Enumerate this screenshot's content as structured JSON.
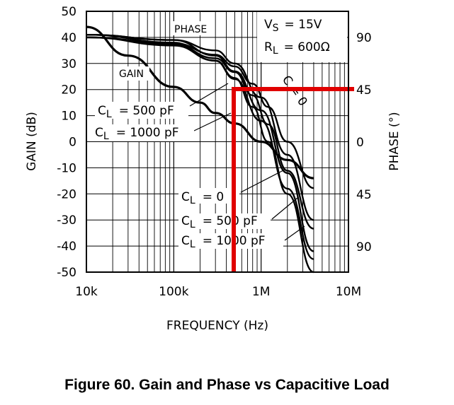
{
  "figure_caption": "Figure 60. Gain and Phase vs Capacitive Load",
  "chart_data": {
    "type": "line",
    "xlabel": "FREQUENCY (Hz)",
    "x_scale": "log",
    "xlim": [
      10000,
      10000000
    ],
    "x_ticks": [
      {
        "value": 10000,
        "label": "10k"
      },
      {
        "value": 100000,
        "label": "100k"
      },
      {
        "value": 1000000,
        "label": "1M"
      },
      {
        "value": 10000000,
        "label": "10M"
      }
    ],
    "y_left": {
      "label": "GAIN (dB)",
      "lim": [
        -50,
        50
      ],
      "ticks": [
        50,
        40,
        30,
        20,
        10,
        0,
        -10,
        -20,
        -30,
        -40,
        -50
      ],
      "tick_labels": [
        "50",
        "40",
        "30",
        "20",
        "10",
        "0",
        "-10",
        "-20",
        "-30",
        "-40",
        "-50"
      ]
    },
    "y_right": {
      "label": "PHASE (°)",
      "ticks": [
        90,
        45,
        0,
        45,
        90
      ],
      "tick_labels": [
        "90",
        "45",
        "0",
        "45",
        "90"
      ]
    },
    "grid": true,
    "annotations": {
      "conditions": [
        {
          "sym": "V",
          "sub": "S",
          "value": "=  15V"
        },
        {
          "sym": "R",
          "sub": "L",
          "value": "=  600Ω"
        }
      ],
      "phase_label": "PHASE",
      "gain_label": "GAIN",
      "cl_500": {
        "sym": "C",
        "sub": "L",
        "value": "=  500 pF"
      },
      "cl_1000": {
        "sym": "C",
        "sub": "L",
        "value": "=  1000 pF"
      },
      "cl_0_lower": {
        "sym": "C",
        "sub": "L",
        "value": "=  0"
      },
      "cl_500_lower": {
        "sym": "C",
        "sub": "L",
        "value": "=  500 pF"
      },
      "cl_1000_lower": {
        "sym": "C",
        "sub": "L",
        "value": "=  1000 pF"
      },
      "cl_0_upper": "C  = 0"
    },
    "series": [
      {
        "kind": "gain",
        "x": [
          10000,
          30000,
          100000,
          200000,
          300000,
          500000,
          1000000,
          2000000,
          4000000
        ],
        "y": [
          44,
          33,
          21,
          15,
          11,
          7,
          0,
          -7,
          -14
        ]
      },
      {
        "kind": "phase",
        "x": [
          10000,
          100000,
          300000,
          500000,
          800000,
          1200000,
          2000000,
          4000000
        ],
        "y": [
          90,
          85,
          75,
          65,
          50,
          30,
          0,
          -40
        ]
      },
      {
        "kind": "phase",
        "x": [
          10000,
          100000,
          300000,
          500000,
          800000,
          1200000,
          2000000,
          4000000
        ],
        "y": [
          90,
          84,
          72,
          60,
          40,
          15,
          -25,
          -75
        ]
      },
      {
        "kind": "phase",
        "x": [
          10000,
          100000,
          300000,
          500000,
          800000,
          1200000,
          2000000,
          4000000
        ],
        "y": [
          90,
          83,
          70,
          55,
          30,
          0,
          -45,
          -115
        ]
      },
      {
        "kind": "gain",
        "x": [
          10000,
          100000,
          300000,
          500000,
          1000000,
          2000000,
          4000000
        ],
        "y": [
          41,
          39,
          35,
          30,
          17,
          -5,
          -30
        ]
      },
      {
        "kind": "gain",
        "x": [
          10000,
          100000,
          300000,
          500000,
          1000000,
          2000000,
          4000000
        ],
        "y": [
          41,
          39,
          33,
          27,
          12,
          -12,
          -42
        ]
      },
      {
        "kind": "gain",
        "x": [
          10000,
          100000,
          300000,
          500000,
          1000000,
          2000000,
          4000000
        ],
        "y": [
          41,
          38,
          31,
          24,
          8,
          -18,
          -45
        ]
      }
    ],
    "highlight_color": "#e00000"
  }
}
